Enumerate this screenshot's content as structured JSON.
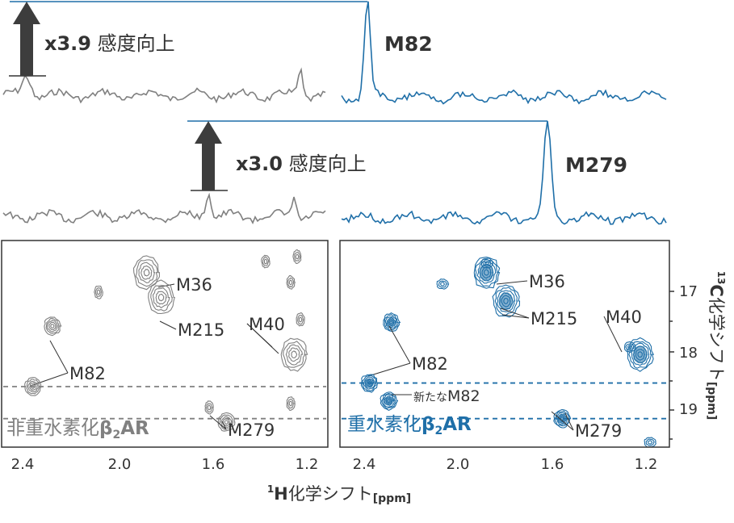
{
  "colors": {
    "gray": "#808080",
    "blue": "#1f6fa8",
    "axis": "#333333",
    "arrow": "#3d3d3d"
  },
  "spectra": [
    {
      "gain_value": "x3.9",
      "gain_text": "感度向上",
      "peak_label": "M82",
      "gray_peak_ppm": 2.38,
      "blue_peak_ppm": 2.38
    },
    {
      "gain_value": "x3.0",
      "gain_text": "感度向上",
      "peak_label": "M279",
      "gray_peak_ppm": 1.6,
      "blue_peak_ppm": 1.6
    }
  ],
  "chart_data": [
    {
      "type": "contour",
      "panel": "left",
      "label": "非重水素化β2AR",
      "label_main": "非重水素化",
      "label_beta": "β",
      "label_sub": "2",
      "label_ar": "AR",
      "color": "#808080",
      "x_ticks": [
        "2.4",
        "2.0",
        "1.6",
        "1.2"
      ],
      "xlim": [
        2.5,
        1.15
      ],
      "ylim": [
        16.5,
        19.4
      ],
      "peaks": [
        {
          "label": "M36",
          "h": 1.9,
          "c": 16.95
        },
        {
          "label": "M215",
          "h": 1.84,
          "c": 17.3
        },
        {
          "label": "M40",
          "h": 1.29,
          "c": 18.1
        },
        {
          "label": "M82",
          "h": 2.29,
          "c": 17.7
        },
        {
          "label": "M82",
          "h": 2.37,
          "c": 18.55
        },
        {
          "label": "M279",
          "h": 1.57,
          "c": 19.05
        }
      ],
      "dashed_lines_c": [
        18.55,
        19.0
      ]
    },
    {
      "type": "contour",
      "panel": "right",
      "label": "重水素化β2AR",
      "label_main": "重水素化",
      "label_beta": "β",
      "label_sub": "2",
      "label_ar": "AR",
      "color": "#1f6fa8",
      "x_ticks": [
        "2.4",
        "2.0",
        "1.6",
        "1.2"
      ],
      "y_ticks": [
        "17",
        "18",
        "19"
      ],
      "xlim": [
        2.5,
        1.15
      ],
      "ylim": [
        16.5,
        19.4
      ],
      "peaks": [
        {
          "label": "M36",
          "h": 1.9,
          "c": 16.95
        },
        {
          "label": "M215",
          "h": 1.82,
          "c": 17.35
        },
        {
          "label": "M40",
          "h": 1.27,
          "c": 18.1
        },
        {
          "label": "M82",
          "h": 2.29,
          "c": 17.65
        },
        {
          "label": "M82",
          "h": 2.38,
          "c": 18.5
        },
        {
          "label": "新たなM82",
          "h": 2.3,
          "c": 18.75
        },
        {
          "label": "M279",
          "h": 1.59,
          "c": 19.0
        }
      ],
      "dashed_lines_c": [
        18.5,
        19.0
      ]
    }
  ],
  "axes": {
    "x_sup": "1",
    "x_nuc": "H",
    "x_rest": "化学シフト",
    "x_unit": "[ppm]",
    "y_sup": "13",
    "y_nuc": "C",
    "y_rest": "化学シフト",
    "y_unit": "[ppm]"
  }
}
